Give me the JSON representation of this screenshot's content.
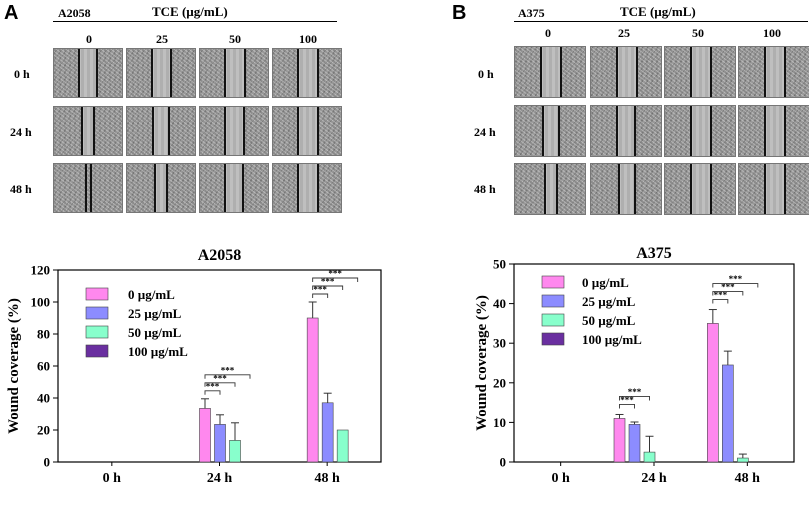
{
  "panels": [
    {
      "letter": "A",
      "cell_line": "A2058",
      "treatment_label": "TCE (µg/mL)",
      "concentrations": [
        "0",
        "25",
        "50",
        "100"
      ],
      "timepoints": [
        "0 h",
        "24 h",
        "48 h"
      ]
    },
    {
      "letter": "B",
      "cell_line": "A375",
      "treatment_label": "TCE (µg/mL)",
      "concentrations": [
        "0",
        "25",
        "50",
        "100"
      ],
      "timepoints": [
        "0 h",
        "24 h",
        "48 h"
      ]
    }
  ],
  "legend_labels": [
    "0 µg/mL",
    "25 µg/mL",
    "50 µg/mL",
    "100 µg/mL"
  ],
  "series_colors": [
    "#ff88ee",
    "#8c8cff",
    "#88ffcc",
    "#6a2fa0"
  ],
  "sig_label": "***",
  "chart_data": [
    {
      "type": "bar",
      "title": "A2058",
      "xlabel": "",
      "ylabel": "Wound coverage (%)",
      "categories": [
        "0 h",
        "24 h",
        "48 h"
      ],
      "ylim": [
        0,
        120
      ],
      "yticks": [
        "0",
        "20",
        "40",
        "60",
        "80",
        "100",
        "120"
      ],
      "series": [
        {
          "name": "0 µg/mL",
          "values": [
            0,
            33.5,
            90
          ],
          "errors": [
            0,
            6,
            10
          ]
        },
        {
          "name": "25 µg/mL",
          "values": [
            0,
            23.5,
            37
          ],
          "errors": [
            0,
            6,
            6
          ]
        },
        {
          "name": "50 µg/mL",
          "values": [
            0,
            13.5,
            20
          ],
          "errors": [
            0,
            11,
            0
          ]
        },
        {
          "name": "100 µg/mL",
          "values": [
            0,
            0,
            0
          ],
          "errors": [
            0,
            0,
            0
          ]
        }
      ],
      "significance": [
        {
          "category": "24 h",
          "from": "0 µg/mL",
          "to": "25 µg/mL",
          "label": "***"
        },
        {
          "category": "24 h",
          "from": "0 µg/mL",
          "to": "50 µg/mL",
          "label": "***"
        },
        {
          "category": "24 h",
          "from": "0 µg/mL",
          "to": "100 µg/mL",
          "label": "***"
        },
        {
          "category": "48 h",
          "from": "0 µg/mL",
          "to": "25 µg/mL",
          "label": "***"
        },
        {
          "category": "48 h",
          "from": "0 µg/mL",
          "to": "50 µg/mL",
          "label": "***"
        },
        {
          "category": "48 h",
          "from": "0 µg/mL",
          "to": "100 µg/mL",
          "label": "***"
        }
      ]
    },
    {
      "type": "bar",
      "title": "A375",
      "xlabel": "",
      "ylabel": "Wound coverage (%)",
      "categories": [
        "0 h",
        "24 h",
        "48 h"
      ],
      "ylim": [
        0,
        50
      ],
      "yticks": [
        "0",
        "10",
        "20",
        "30",
        "40",
        "50"
      ],
      "series": [
        {
          "name": "0 µg/mL",
          "values": [
            0,
            11,
            35
          ],
          "errors": [
            0,
            1,
            3.5
          ]
        },
        {
          "name": "25 µg/mL",
          "values": [
            0,
            9.5,
            24.5
          ],
          "errors": [
            0,
            0.6,
            3.5
          ]
        },
        {
          "name": "50 µg/mL",
          "values": [
            0,
            2.5,
            1
          ],
          "errors": [
            0,
            4,
            1
          ]
        },
        {
          "name": "100 µg/mL",
          "values": [
            0,
            0,
            0
          ],
          "errors": [
            0,
            0,
            0
          ]
        }
      ],
      "significance": [
        {
          "category": "24 h",
          "from": "0 µg/mL",
          "to": "25 µg/mL",
          "label": "***"
        },
        {
          "category": "24 h",
          "from": "0 µg/mL",
          "to": "50 µg/mL",
          "label": "***"
        },
        {
          "category": "48 h",
          "from": "0 µg/mL",
          "to": "25 µg/mL",
          "label": "***"
        },
        {
          "category": "48 h",
          "from": "0 µg/mL",
          "to": "50 µg/mL",
          "label": "***"
        },
        {
          "category": "48 h",
          "from": "0 µg/mL",
          "to": "100 µg/mL",
          "label": "***"
        }
      ]
    }
  ]
}
